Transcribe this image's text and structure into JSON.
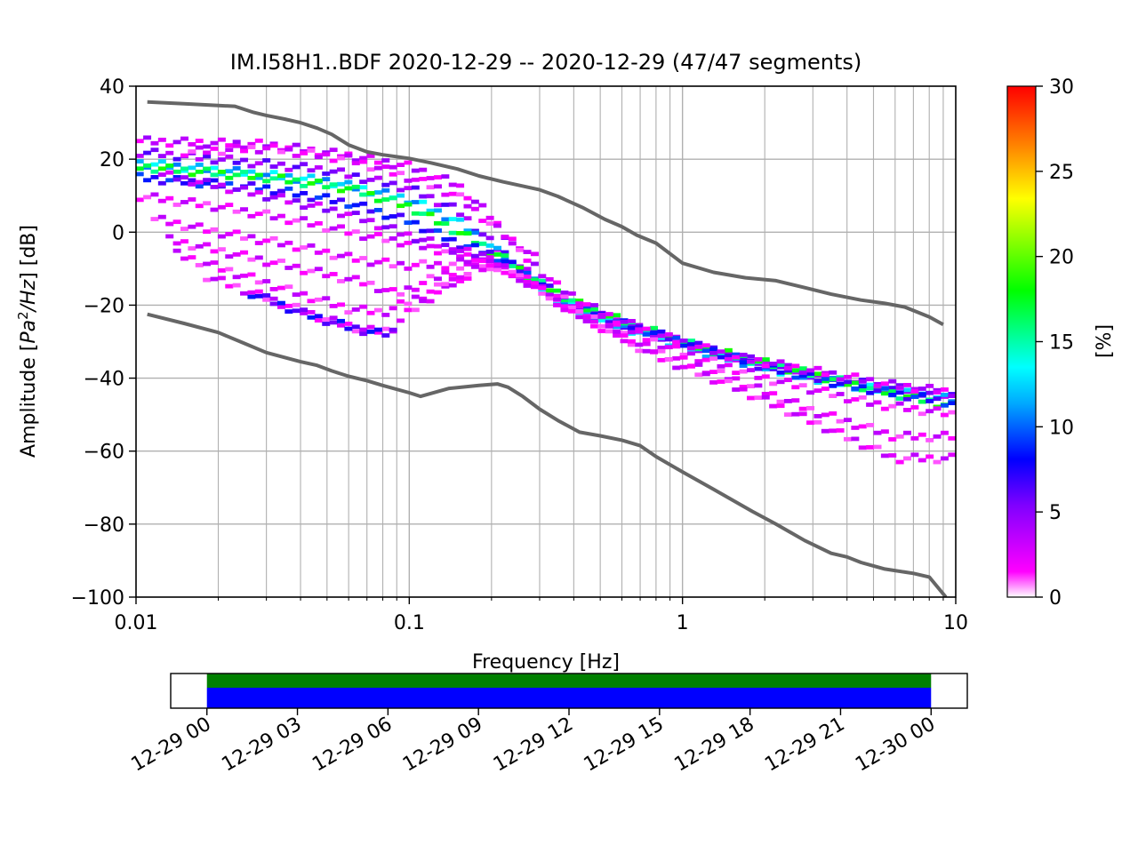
{
  "title": "IM.I58H1..BDF   2020-12-29 -- 2020-12-29  (47/47 segments)",
  "chart_data": [
    {
      "type": "heatmap",
      "xlabel": "Frequency [Hz]",
      "ylabel_prefix": "Amplitude [",
      "ylabel_math_base": "Pa",
      "ylabel_math_sup": "2",
      "ylabel_math_rest": "/Hz",
      "ylabel_suffix": "] [dB]",
      "x_scale": "log",
      "xlim": [
        0.01,
        10
      ],
      "ylim": [
        -100,
        40
      ],
      "x_ticks": [
        0.01,
        0.1,
        1,
        10
      ],
      "x_tick_labels": [
        "0.01",
        "0.1",
        "1",
        "10"
      ],
      "y_ticks": [
        -100,
        -80,
        -60,
        -40,
        -20,
        0,
        20,
        40
      ],
      "y_tick_labels": [
        "−100",
        "−80",
        "−60",
        "−40",
        "−20",
        "0",
        "20",
        "40"
      ],
      "grid": true,
      "colorbar": {
        "label": "[%]",
        "range": [
          0,
          30
        ],
        "ticks": [
          0,
          5,
          10,
          15,
          20,
          25,
          30
        ],
        "tick_labels": [
          "0",
          "5",
          "10",
          "15",
          "20",
          "25",
          "30"
        ],
        "colormap": "pqlx"
      },
      "noise_models": {
        "color": "#666666",
        "high": [
          [
            0.011,
            35.7
          ],
          [
            0.015,
            35.2
          ],
          [
            0.02,
            34.7
          ],
          [
            0.023,
            34.5
          ],
          [
            0.027,
            32.8
          ],
          [
            0.03,
            32
          ],
          [
            0.035,
            31
          ],
          [
            0.04,
            30
          ],
          [
            0.046,
            28.5
          ],
          [
            0.052,
            26.8
          ],
          [
            0.06,
            23.9
          ],
          [
            0.07,
            22
          ],
          [
            0.08,
            21.2
          ],
          [
            0.1,
            20.2
          ],
          [
            0.12,
            19
          ],
          [
            0.15,
            17.3
          ],
          [
            0.18,
            15.4
          ],
          [
            0.22,
            13.8
          ],
          [
            0.3,
            11.6
          ],
          [
            0.35,
            9.8
          ],
          [
            0.43,
            6.8
          ],
          [
            0.52,
            3.5
          ],
          [
            0.6,
            1.5
          ],
          [
            0.68,
            -0.8
          ],
          [
            0.8,
            -3
          ],
          [
            1.0,
            -8.5
          ],
          [
            1.3,
            -11
          ],
          [
            1.7,
            -12.5
          ],
          [
            2.2,
            -13.3
          ],
          [
            2.8,
            -15.2
          ],
          [
            3.5,
            -17
          ],
          [
            4.5,
            -18.6
          ],
          [
            5.5,
            -19.5
          ],
          [
            6.5,
            -20.5
          ],
          [
            8,
            -23.2
          ],
          [
            9,
            -25.3
          ]
        ],
        "low": [
          [
            0.011,
            -22.5
          ],
          [
            0.015,
            -25
          ],
          [
            0.02,
            -27.5
          ],
          [
            0.025,
            -30.5
          ],
          [
            0.03,
            -33
          ],
          [
            0.04,
            -35.5
          ],
          [
            0.046,
            -36.5
          ],
          [
            0.052,
            -38
          ],
          [
            0.06,
            -39.5
          ],
          [
            0.07,
            -40.7
          ],
          [
            0.08,
            -42
          ],
          [
            0.1,
            -44
          ],
          [
            0.11,
            -45
          ],
          [
            0.12,
            -44.2
          ],
          [
            0.14,
            -42.8
          ],
          [
            0.18,
            -42
          ],
          [
            0.21,
            -41.6
          ],
          [
            0.23,
            -42.5
          ],
          [
            0.26,
            -45
          ],
          [
            0.3,
            -48.5
          ],
          [
            0.35,
            -51.6
          ],
          [
            0.42,
            -54.8
          ],
          [
            0.5,
            -55.8
          ],
          [
            0.6,
            -57
          ],
          [
            0.7,
            -58.5
          ],
          [
            0.8,
            -61.5
          ],
          [
            1.0,
            -65.7
          ],
          [
            1.3,
            -70.5
          ],
          [
            1.8,
            -76.5
          ],
          [
            2.2,
            -80
          ],
          [
            2.8,
            -84.5
          ],
          [
            3.5,
            -88
          ],
          [
            4,
            -89
          ],
          [
            4.5,
            -90.5
          ],
          [
            5.5,
            -92.3
          ],
          [
            7,
            -93.5
          ],
          [
            8,
            -94.5
          ],
          [
            9.2,
            -100
          ]
        ]
      },
      "psd_curves": [
        {
          "value": 5,
          "points": [
            [
              0.01,
              22
            ],
            [
              0.02,
              20
            ],
            [
              0.05,
              17
            ],
            [
              0.1,
              12
            ],
            [
              0.15,
              6
            ],
            [
              0.2,
              -3
            ],
            [
              0.25,
              -9
            ],
            [
              0.35,
              -18
            ],
            [
              0.5,
              -23
            ],
            [
              0.8,
              -28
            ],
            [
              1.2,
              -32
            ],
            [
              2,
              -36
            ],
            [
              3,
              -39
            ],
            [
              5,
              -42
            ],
            [
              10,
              -45
            ]
          ]
        },
        {
          "value": 12,
          "points": [
            [
              0.01,
              19
            ],
            [
              0.02,
              17
            ],
            [
              0.05,
              14
            ],
            [
              0.1,
              9
            ],
            [
              0.15,
              3
            ],
            [
              0.2,
              -4
            ],
            [
              0.25,
              -10
            ],
            [
              0.35,
              -19
            ],
            [
              0.5,
              -24
            ],
            [
              0.8,
              -29
            ],
            [
              1.2,
              -33
            ],
            [
              2,
              -37
            ],
            [
              3,
              -40
            ],
            [
              5,
              -43
            ],
            [
              10,
              -46
            ]
          ]
        },
        {
          "value": 17,
          "points": [
            [
              0.01,
              18
            ],
            [
              0.03,
              15
            ],
            [
              0.06,
              12
            ],
            [
              0.1,
              7
            ],
            [
              0.17,
              -2
            ],
            [
              0.22,
              -7
            ],
            [
              0.3,
              -14
            ],
            [
              0.45,
              -21
            ],
            [
              0.7,
              -26
            ],
            [
              1.1,
              -31
            ],
            [
              1.8,
              -35
            ],
            [
              3,
              -39
            ],
            [
              5,
              -43
            ],
            [
              10,
              -48
            ]
          ]
        },
        {
          "value": 8,
          "points": [
            [
              0.01,
              15
            ],
            [
              0.03,
              12
            ],
            [
              0.06,
              8
            ],
            [
              0.1,
              3
            ],
            [
              0.15,
              -3
            ],
            [
              0.2,
              -6
            ],
            [
              0.25,
              -10
            ],
            [
              0.4,
              -20
            ],
            [
              0.6,
              -25
            ],
            [
              1,
              -30
            ],
            [
              2,
              -37
            ],
            [
              4,
              -42
            ],
            [
              10,
              -47
            ]
          ]
        },
        {
          "value": 3,
          "points": [
            [
              0.01,
              25
            ],
            [
              0.03,
              24
            ],
            [
              0.06,
              21
            ],
            [
              0.1,
              18
            ],
            [
              0.15,
              13
            ],
            [
              0.2,
              4
            ],
            [
              0.25,
              -5
            ],
            [
              0.35,
              -15
            ],
            [
              0.5,
              -22
            ],
            [
              0.8,
              -28
            ],
            [
              1.5,
              -34
            ],
            [
              3,
              -38
            ],
            [
              6,
              -42
            ],
            [
              10,
              -44
            ]
          ]
        },
        {
          "value": 2,
          "points": [
            [
              0.01,
              10
            ],
            [
              0.02,
              7
            ],
            [
              0.04,
              3
            ],
            [
              0.07,
              -1
            ],
            [
              0.1,
              -3
            ],
            [
              0.15,
              -6
            ],
            [
              0.2,
              -8
            ],
            [
              0.3,
              -15
            ],
            [
              0.5,
              -24
            ],
            [
              1,
              -33
            ],
            [
              2,
              -40
            ],
            [
              5,
              -47
            ],
            [
              10,
              -50
            ]
          ]
        },
        {
          "value": 2,
          "points": [
            [
              0.011,
              4
            ],
            [
              0.02,
              0
            ],
            [
              0.04,
              -4
            ],
            [
              0.06,
              -7
            ],
            [
              0.09,
              -9
            ],
            [
              0.13,
              -9
            ],
            [
              0.18,
              -8
            ],
            [
              0.25,
              -12
            ],
            [
              0.4,
              -22
            ],
            [
              0.7,
              -31
            ],
            [
              1.5,
              -40
            ],
            [
              3,
              -49
            ],
            [
              6,
              -56
            ],
            [
              10,
              -56
            ]
          ]
        },
        {
          "value": 2,
          "points": [
            [
              0.013,
              -2
            ],
            [
              0.02,
              -5
            ],
            [
              0.04,
              -10
            ],
            [
              0.07,
              -14
            ],
            [
              0.09,
              -17
            ],
            [
              0.12,
              -13
            ],
            [
              0.18,
              -8
            ],
            [
              0.25,
              -12
            ],
            [
              0.4,
              -22
            ],
            [
              0.8,
              -34
            ],
            [
              1.5,
              -42
            ],
            [
              3,
              -52
            ],
            [
              6,
              -62
            ],
            [
              10,
              -62
            ]
          ]
        },
        {
          "value": 2,
          "points": [
            [
              0.014,
              -6
            ],
            [
              0.025,
              -12
            ],
            [
              0.04,
              -17
            ],
            [
              0.06,
              -21
            ],
            [
              0.08,
              -22
            ],
            [
              0.1,
              -19
            ],
            [
              0.13,
              -15
            ],
            [
              0.18,
              -10
            ],
            [
              0.23,
              -9
            ]
          ]
        },
        {
          "value": 2,
          "points": [
            [
              0.018,
              -12
            ],
            [
              0.03,
              -18
            ],
            [
              0.05,
              -24
            ],
            [
              0.07,
              -27
            ],
            [
              0.085,
              -27
            ],
            [
              0.1,
              -22
            ],
            [
              0.13,
              -16
            ],
            [
              0.17,
              -11
            ]
          ]
        },
        {
          "value": 7,
          "points": [
            [
              0.025,
              -16
            ],
            [
              0.04,
              -22
            ],
            [
              0.06,
              -26
            ],
            [
              0.08,
              -28
            ],
            [
              0.09,
              -27
            ]
          ]
        },
        {
          "value": 2,
          "points": [
            [
              0.015,
              22
            ],
            [
              0.03,
              23
            ],
            [
              0.06,
              20
            ],
            [
              0.1,
              15
            ],
            [
              0.15,
              10
            ],
            [
              0.2,
              2
            ],
            [
              0.3,
              -8
            ]
          ]
        },
        {
          "value": 4,
          "points": [
            [
              0.012,
              16
            ],
            [
              0.03,
              10
            ],
            [
              0.06,
              5
            ],
            [
              0.1,
              -1
            ],
            [
              0.15,
              -5
            ],
            [
              0.2,
              -7
            ]
          ]
        }
      ]
    },
    {
      "type": "timeline",
      "tick_labels": [
        "12-29 00",
        "12-29 03",
        "12-29 06",
        "12-29 09",
        "12-29 12",
        "12-29 15",
        "12-29 18",
        "12-29 21",
        "12-30 00"
      ],
      "tick_hours": [
        0,
        3,
        6,
        9,
        12,
        15,
        18,
        21,
        24
      ],
      "xlim_hours": [
        -1.2,
        25.2
      ],
      "bars": [
        {
          "start_hour": 0,
          "end_hour": 24,
          "color": "#008000",
          "row": "top"
        },
        {
          "start_hour": 0,
          "end_hour": 24,
          "color": "#0000ff",
          "row": "bottom"
        }
      ]
    }
  ]
}
